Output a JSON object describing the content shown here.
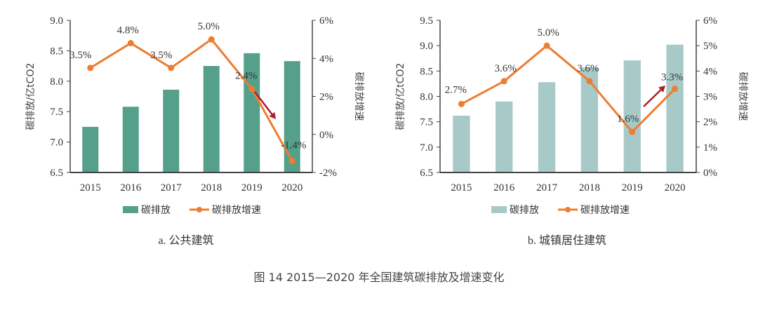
{
  "figure_caption": "图 14   2015—2020 年全国建筑碳排放及增速变化",
  "colors": {
    "line": "#ed7d31",
    "arrow": "#a9202a",
    "bar_a": "#55a08a",
    "bar_b": "#a7cac9",
    "axis": "#444444"
  },
  "chart_data": [
    {
      "type": "bar+line",
      "subtitle": "a. 公共建筑",
      "categories": [
        "2015",
        "2016",
        "2017",
        "2018",
        "2019",
        "2020"
      ],
      "ylabel": "碳排放/亿tCO2",
      "y2label": "碳排放增速",
      "ylim": [
        6.5,
        9.0
      ],
      "yticks": [
        "6.5",
        "7.0",
        "7.5",
        "8.0",
        "8.5",
        "9.0"
      ],
      "y2lim": [
        -2,
        6
      ],
      "y2ticks": [
        "-2%",
        "0%",
        "2%",
        "4%",
        "6%"
      ],
      "series": [
        {
          "name": "碳排放",
          "type": "bar",
          "values": [
            7.25,
            7.58,
            7.86,
            8.25,
            8.46,
            8.33
          ]
        },
        {
          "name": "碳排放增速",
          "type": "line",
          "values": [
            3.5,
            4.8,
            3.5,
            5.0,
            2.4,
            -1.4
          ],
          "labels": [
            "3.5%",
            "4.8%",
            "3.5%",
            "5.0%",
            "2.4%",
            "-1.4%"
          ]
        }
      ],
      "annotation": "downward arrow between 2019 and 2020",
      "legend": [
        "碳排放",
        "碳排放增速"
      ],
      "legend_position": "bottom"
    },
    {
      "type": "bar+line",
      "subtitle": "b. 城镇居住建筑",
      "categories": [
        "2015",
        "2016",
        "2017",
        "2018",
        "2019",
        "2020"
      ],
      "ylabel": "碳排放/亿tCO2",
      "y2label": "碳排放增速",
      "ylim": [
        6.5,
        9.5
      ],
      "yticks": [
        "6.5",
        "7.0",
        "7.5",
        "8.0",
        "8.5",
        "9.0",
        "9.5"
      ],
      "y2lim": [
        0,
        6
      ],
      "y2ticks": [
        "0%",
        "1%",
        "2%",
        "3%",
        "4%",
        "5%",
        "6%"
      ],
      "series": [
        {
          "name": "碳排放",
          "type": "bar",
          "values": [
            7.62,
            7.9,
            8.28,
            8.57,
            8.71,
            9.02
          ]
        },
        {
          "name": "碳排放增速",
          "type": "line",
          "values": [
            2.7,
            3.6,
            5.0,
            3.6,
            1.6,
            3.3
          ],
          "labels": [
            "2.7%",
            "3.6%",
            "5.0%",
            "3.6%",
            "1.6%",
            "3.3%"
          ]
        }
      ],
      "annotation": "upward arrow between 2019 and 2020",
      "legend": [
        "碳排放",
        "碳排放增速"
      ],
      "legend_position": "bottom"
    }
  ]
}
